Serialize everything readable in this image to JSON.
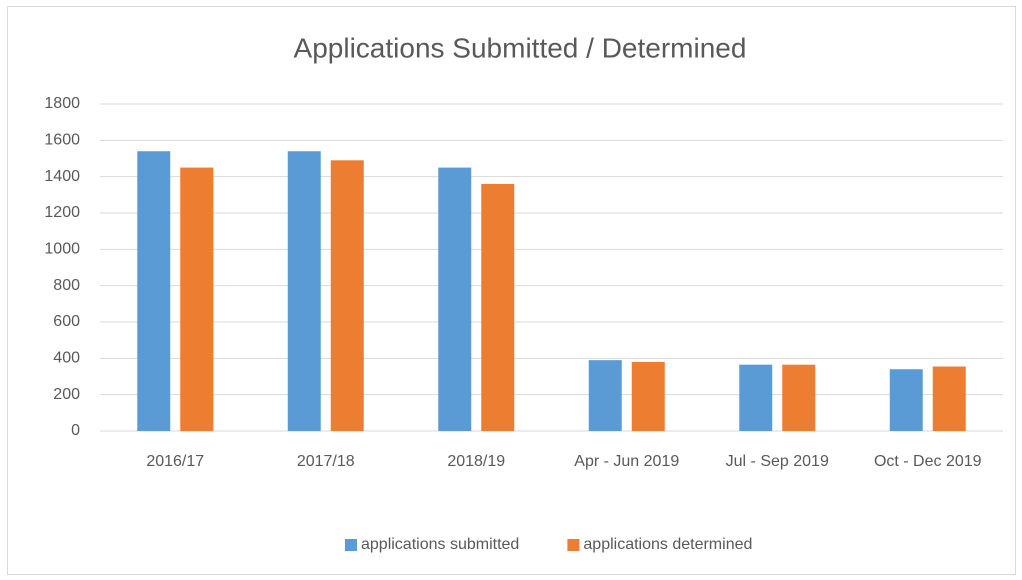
{
  "chart_data": {
    "type": "bar",
    "title": "Applications Submitted / Determined",
    "categories": [
      "2016/17",
      "2017/18",
      "2018/19",
      "Apr - Jun 2019",
      "Jul - Sep 2019",
      "Oct - Dec 2019"
    ],
    "series": [
      {
        "name": "applications submitted",
        "color": "#5b9bd5",
        "values": [
          1540,
          1540,
          1450,
          390,
          365,
          340
        ]
      },
      {
        "name": "applications determined",
        "color": "#ed7d31",
        "values": [
          1450,
          1490,
          1360,
          380,
          365,
          355
        ]
      }
    ],
    "ylim": [
      0,
      1800
    ],
    "yticks": [
      0,
      200,
      400,
      600,
      800,
      1000,
      1200,
      1400,
      1600,
      1800
    ],
    "grid": true,
    "legend": "bottom"
  }
}
